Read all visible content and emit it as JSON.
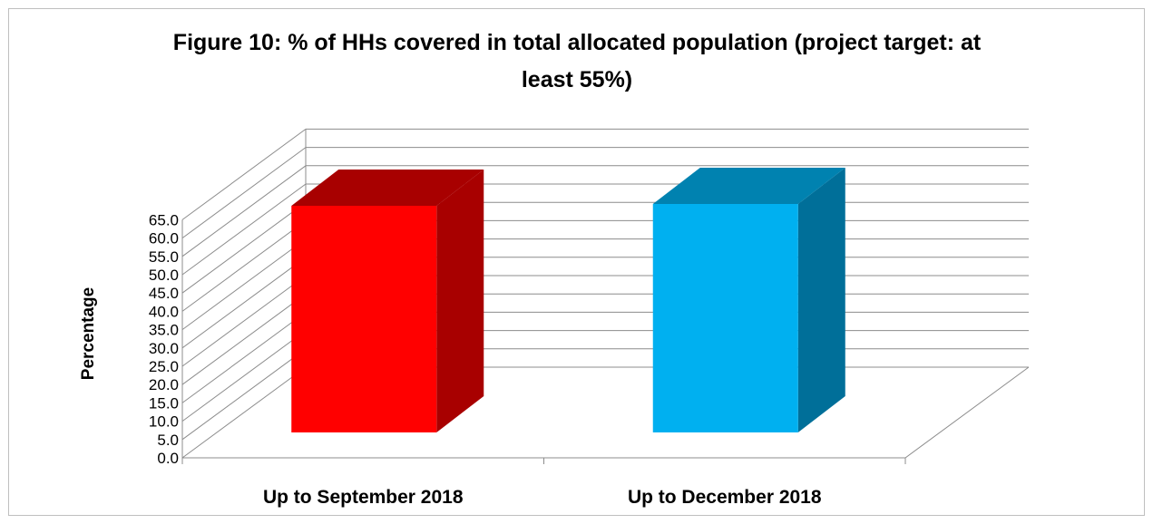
{
  "chart_data": {
    "type": "bar",
    "title": "Figure 10: % of HHs covered in total allocated population (project target: at least 55%)",
    "title_lines": [
      "Figure 10: % of HHs covered in total allocated population (project target: at",
      "least 55%)"
    ],
    "xlabel": "",
    "ylabel": "Percentage",
    "categories": [
      "Up to September 2018",
      "Up to December 2018"
    ],
    "values": [
      62.5,
      63.0
    ],
    "ylim": [
      0,
      65
    ],
    "ytick_step": 5,
    "yticks": [
      "0.0",
      "5.0",
      "10.0",
      "15.0",
      "20.0",
      "25.0",
      "30.0",
      "35.0",
      "40.0",
      "45.0",
      "50.0",
      "55.0",
      "60.0",
      "65.0"
    ],
    "grid": true,
    "three_d": true,
    "legend": "none",
    "bar_colors": [
      {
        "front": "#ff0000",
        "top": "#a80000",
        "side": "#a80000"
      },
      {
        "front": "#00b0f0",
        "top": "#0082b0",
        "side": "#006f99"
      }
    ],
    "colors": {
      "frame": "#bfbfbf",
      "grid": "#8c8c8c",
      "axis": "#8c8c8c"
    }
  }
}
